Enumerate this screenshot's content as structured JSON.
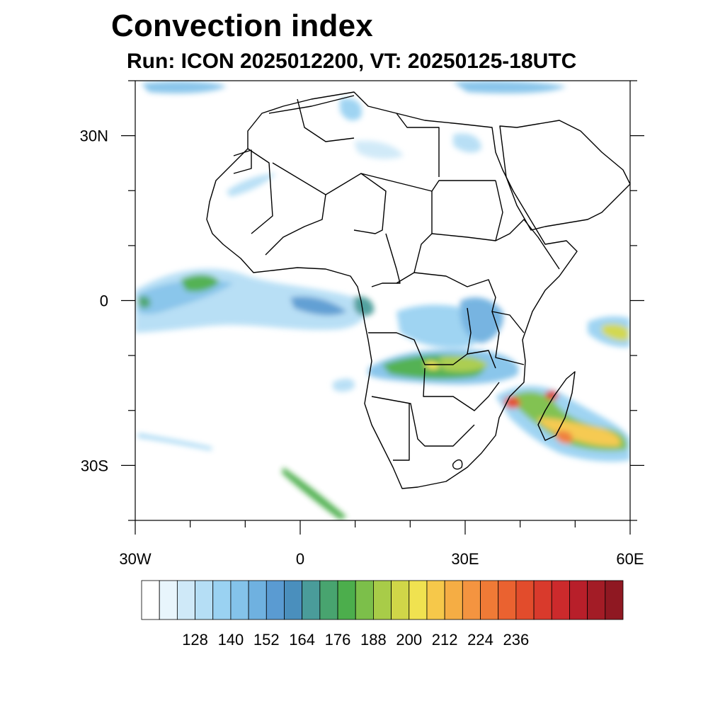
{
  "title": "Convection index",
  "subtitle": "Run: ICON 2025012200,  VT: 20250125-18UTC",
  "axes": {
    "lat_labels": [
      {
        "text": "30N",
        "lat": 30
      },
      {
        "text": "0",
        "lat": 0
      },
      {
        "text": "30S",
        "lat": -30
      }
    ],
    "lon_labels": [
      {
        "text": "30W",
        "lon": -30
      },
      {
        "text": "0",
        "lon": 0
      },
      {
        "text": "30E",
        "lon": 30
      },
      {
        "text": "60E",
        "lon": 60
      }
    ],
    "lon_range": [
      -30,
      60
    ],
    "lat_range": [
      -40,
      40
    ],
    "minor_tick_step_deg": 10
  },
  "colorbar": {
    "tick_labels": [
      "128",
      "140",
      "152",
      "164",
      "176",
      "188",
      "200",
      "212",
      "224",
      "236"
    ],
    "colors": [
      "#ffffff",
      "#e8f5fc",
      "#cfe9f8",
      "#b5def5",
      "#9ad2f2",
      "#84c3ea",
      "#6fb1e0",
      "#5a9bd2",
      "#4a8fbd",
      "#4a9c9a",
      "#48a46f",
      "#4cae4c",
      "#7cbf4a",
      "#a8cc48",
      "#d0d648",
      "#f0e250",
      "#f6c84a",
      "#f5ad44",
      "#f49440",
      "#ef7a36",
      "#ea6230",
      "#e24c2c",
      "#d93a2c",
      "#cc2a2c",
      "#b81f2a",
      "#a31c26",
      "#8f1822"
    ]
  },
  "colors": {
    "coastline": "#000000",
    "background": "#ffffff"
  }
}
